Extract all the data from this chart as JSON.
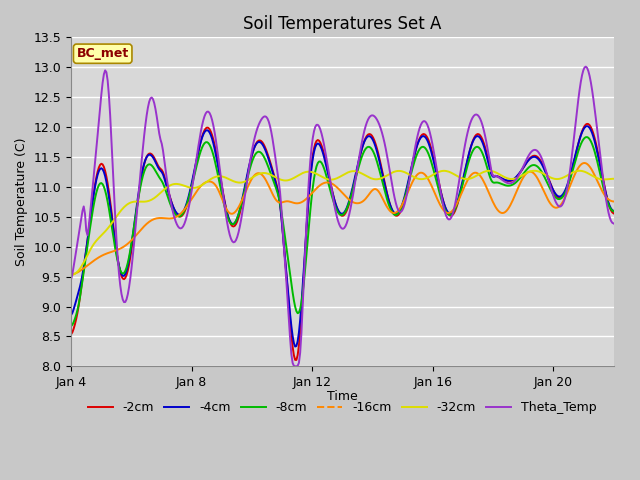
{
  "title": "Soil Temperatures Set A",
  "xlabel": "Time",
  "ylabel": "Soil Temperature (C)",
  "ylim": [
    8.0,
    13.5
  ],
  "yticks": [
    8.0,
    8.5,
    9.0,
    9.5,
    10.0,
    10.5,
    11.0,
    11.5,
    12.0,
    12.5,
    13.0,
    13.5
  ],
  "xtick_labels": [
    "Jan 4",
    "Jan 8",
    "Jan 12",
    "Jan 16",
    "Jan 20"
  ],
  "annotation_text": "BC_met",
  "series_colors": [
    "#dd0000",
    "#0000cc",
    "#00bb00",
    "#ff8800",
    "#dddd00",
    "#9933cc"
  ],
  "series_labels": [
    "-2cm",
    "-4cm",
    "-8cm",
    "-16cm",
    "-32cm",
    "Theta_Temp"
  ],
  "line_width": 1.4,
  "background_color": "#d8d8d8",
  "plot_bg_color": "#d8d8d8",
  "grid_color": "#ffffff",
  "title_fontsize": 12,
  "axis_fontsize": 9,
  "legend_fontsize": 9
}
